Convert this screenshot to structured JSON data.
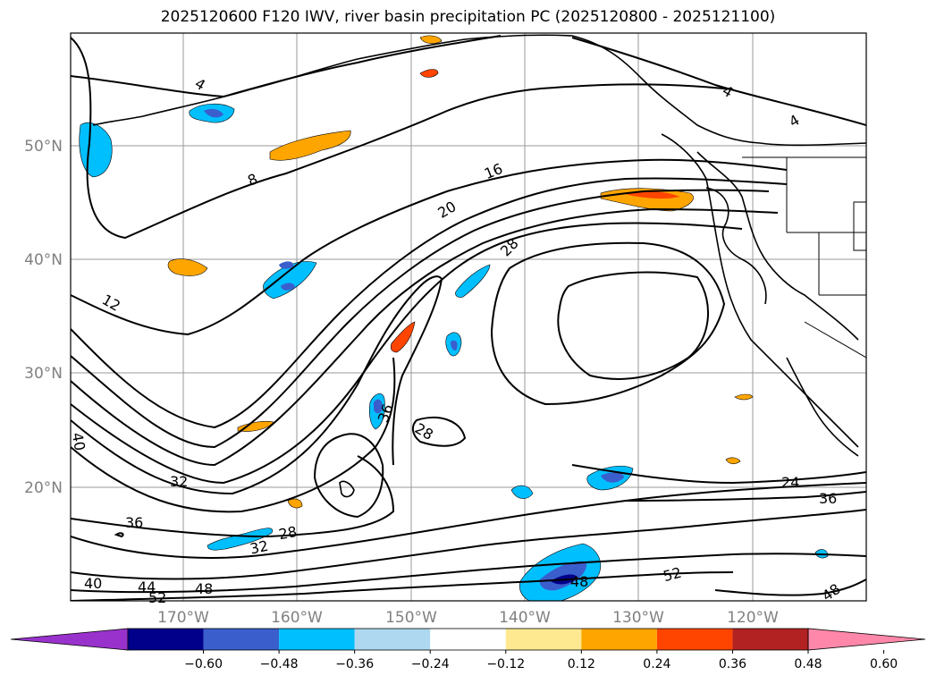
{
  "title": "2025120600 F120 IWV, river basin precipitation PC (2025120800 - 2025121100)",
  "latitude_labels": [
    "50°N",
    "40°N",
    "30°N",
    "20°N"
  ],
  "longitude_labels": [
    "170°W",
    "160°W",
    "150°W",
    "140°W",
    "130°W",
    "120°W"
  ],
  "contour_labels": [
    "4",
    "4",
    "4",
    "8",
    "16",
    "20",
    "28",
    "12",
    "36",
    "28",
    "40",
    "32",
    "36",
    "28",
    "32",
    "40",
    "44",
    "52",
    "48",
    "48",
    "52",
    "24",
    "36",
    "48"
  ],
  "colorbar": {
    "ticks": [
      "−0.60",
      "−0.48",
      "−0.36",
      "−0.24",
      "−0.12",
      "0.12",
      "0.24",
      "0.36",
      "0.48",
      "0.60"
    ],
    "colors": [
      "#9932cc",
      "#00008b",
      "#3a5fcd",
      "#00bfff",
      "#add8f0",
      "#ffffff",
      "#ffe990",
      "#ffa500",
      "#ff4500",
      "#b22222",
      "#ff88aa"
    ]
  },
  "colors": {
    "contour": "#000000",
    "grid": "#9a9a9a",
    "axis_label": "#808080"
  }
}
